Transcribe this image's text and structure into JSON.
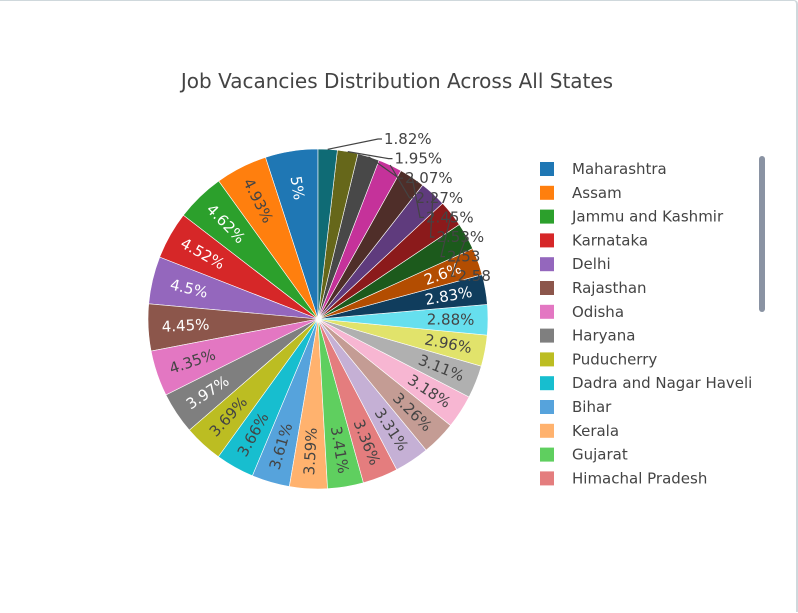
{
  "chart_data": {
    "type": "pie",
    "title": "Job Vacancies Distribution Across All States",
    "slices": [
      {
        "label": "Maharashtra",
        "value": 5,
        "text": "5%",
        "color": "#1f77b4"
      },
      {
        "label": "Assam",
        "value": 4.93,
        "text": "4.93%",
        "color": "#ff7f0e"
      },
      {
        "label": "Jammu and Kashmir",
        "value": 4.62,
        "text": "4.62%",
        "color": "#2ca02c"
      },
      {
        "label": "Karnataka",
        "value": 4.52,
        "text": "4.52%",
        "color": "#d62728"
      },
      {
        "label": "Delhi",
        "value": 4.5,
        "text": "4.5%",
        "color": "#9467bd"
      },
      {
        "label": "Rajasthan",
        "value": 4.45,
        "text": "4.45%",
        "color": "#8c564b"
      },
      {
        "label": "Odisha",
        "value": 4.35,
        "text": "4.35%",
        "color": "#e377c2"
      },
      {
        "label": "Haryana",
        "value": 3.97,
        "text": "3.97%",
        "color": "#7f7f7f"
      },
      {
        "label": "Puducherry",
        "value": 3.69,
        "text": "3.69%",
        "color": "#bcbd22"
      },
      {
        "label": "Dadra and Nagar Haveli",
        "value": 3.66,
        "text": "3.66%",
        "color": "#17becf"
      },
      {
        "label": "Bihar",
        "value": 3.61,
        "text": "3.61%",
        "color": "#56a3dc"
      },
      {
        "label": "Kerala",
        "value": 3.59,
        "text": "3.59%",
        "color": "#ffb26e"
      },
      {
        "label": "Gujarat",
        "value": 3.41,
        "text": "3.41%",
        "color": "#5fcf5f"
      },
      {
        "label": "Himachal Pradesh",
        "value": 3.36,
        "text": "3.36%",
        "color": "#e47d7e"
      },
      {
        "label": "",
        "value": 3.31,
        "text": "3.31%",
        "color": "#c5b0d5"
      },
      {
        "label": "",
        "value": 3.26,
        "text": "3.26%",
        "color": "#c49c94"
      },
      {
        "label": "",
        "value": 3.18,
        "text": "3.18%",
        "color": "#f7b6d2"
      },
      {
        "label": "",
        "value": 3.11,
        "text": "3.11%",
        "color": "#b0b0b0"
      },
      {
        "label": "",
        "value": 2.96,
        "text": "2.96%",
        "color": "#e1e36b"
      },
      {
        "label": "",
        "value": 2.88,
        "text": "2.88%",
        "color": "#66dfee"
      },
      {
        "label": "",
        "value": 2.83,
        "text": "2.83%",
        "color": "#103d5d"
      },
      {
        "label": "",
        "value": 2.6,
        "text": "2.6%",
        "color": "#b34d01"
      },
      {
        "label": "",
        "value": 2.58,
        "text": "2.58",
        "color": "#1c5a1c"
      },
      {
        "label": "",
        "value": 2.53,
        "text": "2.53",
        "color": "#8b1a1b"
      },
      {
        "label": "",
        "value": 2.53,
        "text": "2.53%",
        "color": "#5f3b7d"
      },
      {
        "label": "",
        "value": 2.45,
        "text": "2.45%",
        "color": "#4f2e29"
      },
      {
        "label": "",
        "value": 2.27,
        "text": "2.27%",
        "color": "#c5329a"
      },
      {
        "label": "",
        "value": 2.07,
        "text": "2.07%",
        "color": "#484848"
      },
      {
        "label": "",
        "value": 1.95,
        "text": "1.95%",
        "color": "#66671a"
      },
      {
        "label": "",
        "value": 1.82,
        "text": "1.82%",
        "color": "#0f6b75"
      }
    ],
    "legend_position": "right"
  }
}
